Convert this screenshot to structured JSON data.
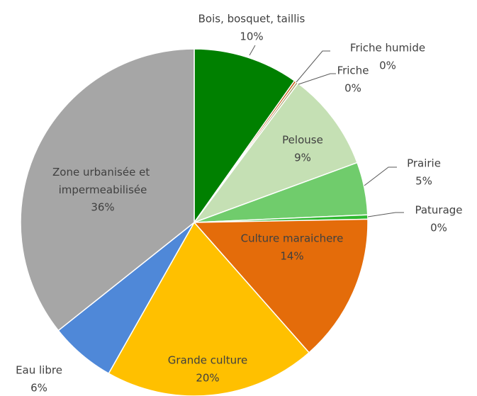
{
  "chart_data": {
    "type": "pie",
    "categories": [
      "Bois, bosquet, taillis",
      "Friche humide",
      "Friche",
      "Pelouse",
      "Prairie",
      "Paturage",
      "Culture maraichere",
      "Grande culture",
      "Eau libre",
      "Zone urbanisée et impermeabilisée"
    ],
    "values": [
      9.8,
      0.2,
      0.2,
      9.2,
      4.9,
      0.4,
      13.8,
      19.7,
      6.1,
      35.7
    ],
    "value_labels": [
      "10%",
      "0%",
      "0%",
      "9%",
      "5%",
      "0%",
      "14%",
      "20%",
      "6%",
      "36%"
    ],
    "colors": [
      "#008000",
      "#c55a11",
      "#a9a06a",
      "#c5e0b4",
      "#70cc6c",
      "#2fb82f",
      "#e46c0a",
      "#ffc000",
      "#4f88d8",
      "#a6a6a6"
    ]
  }
}
